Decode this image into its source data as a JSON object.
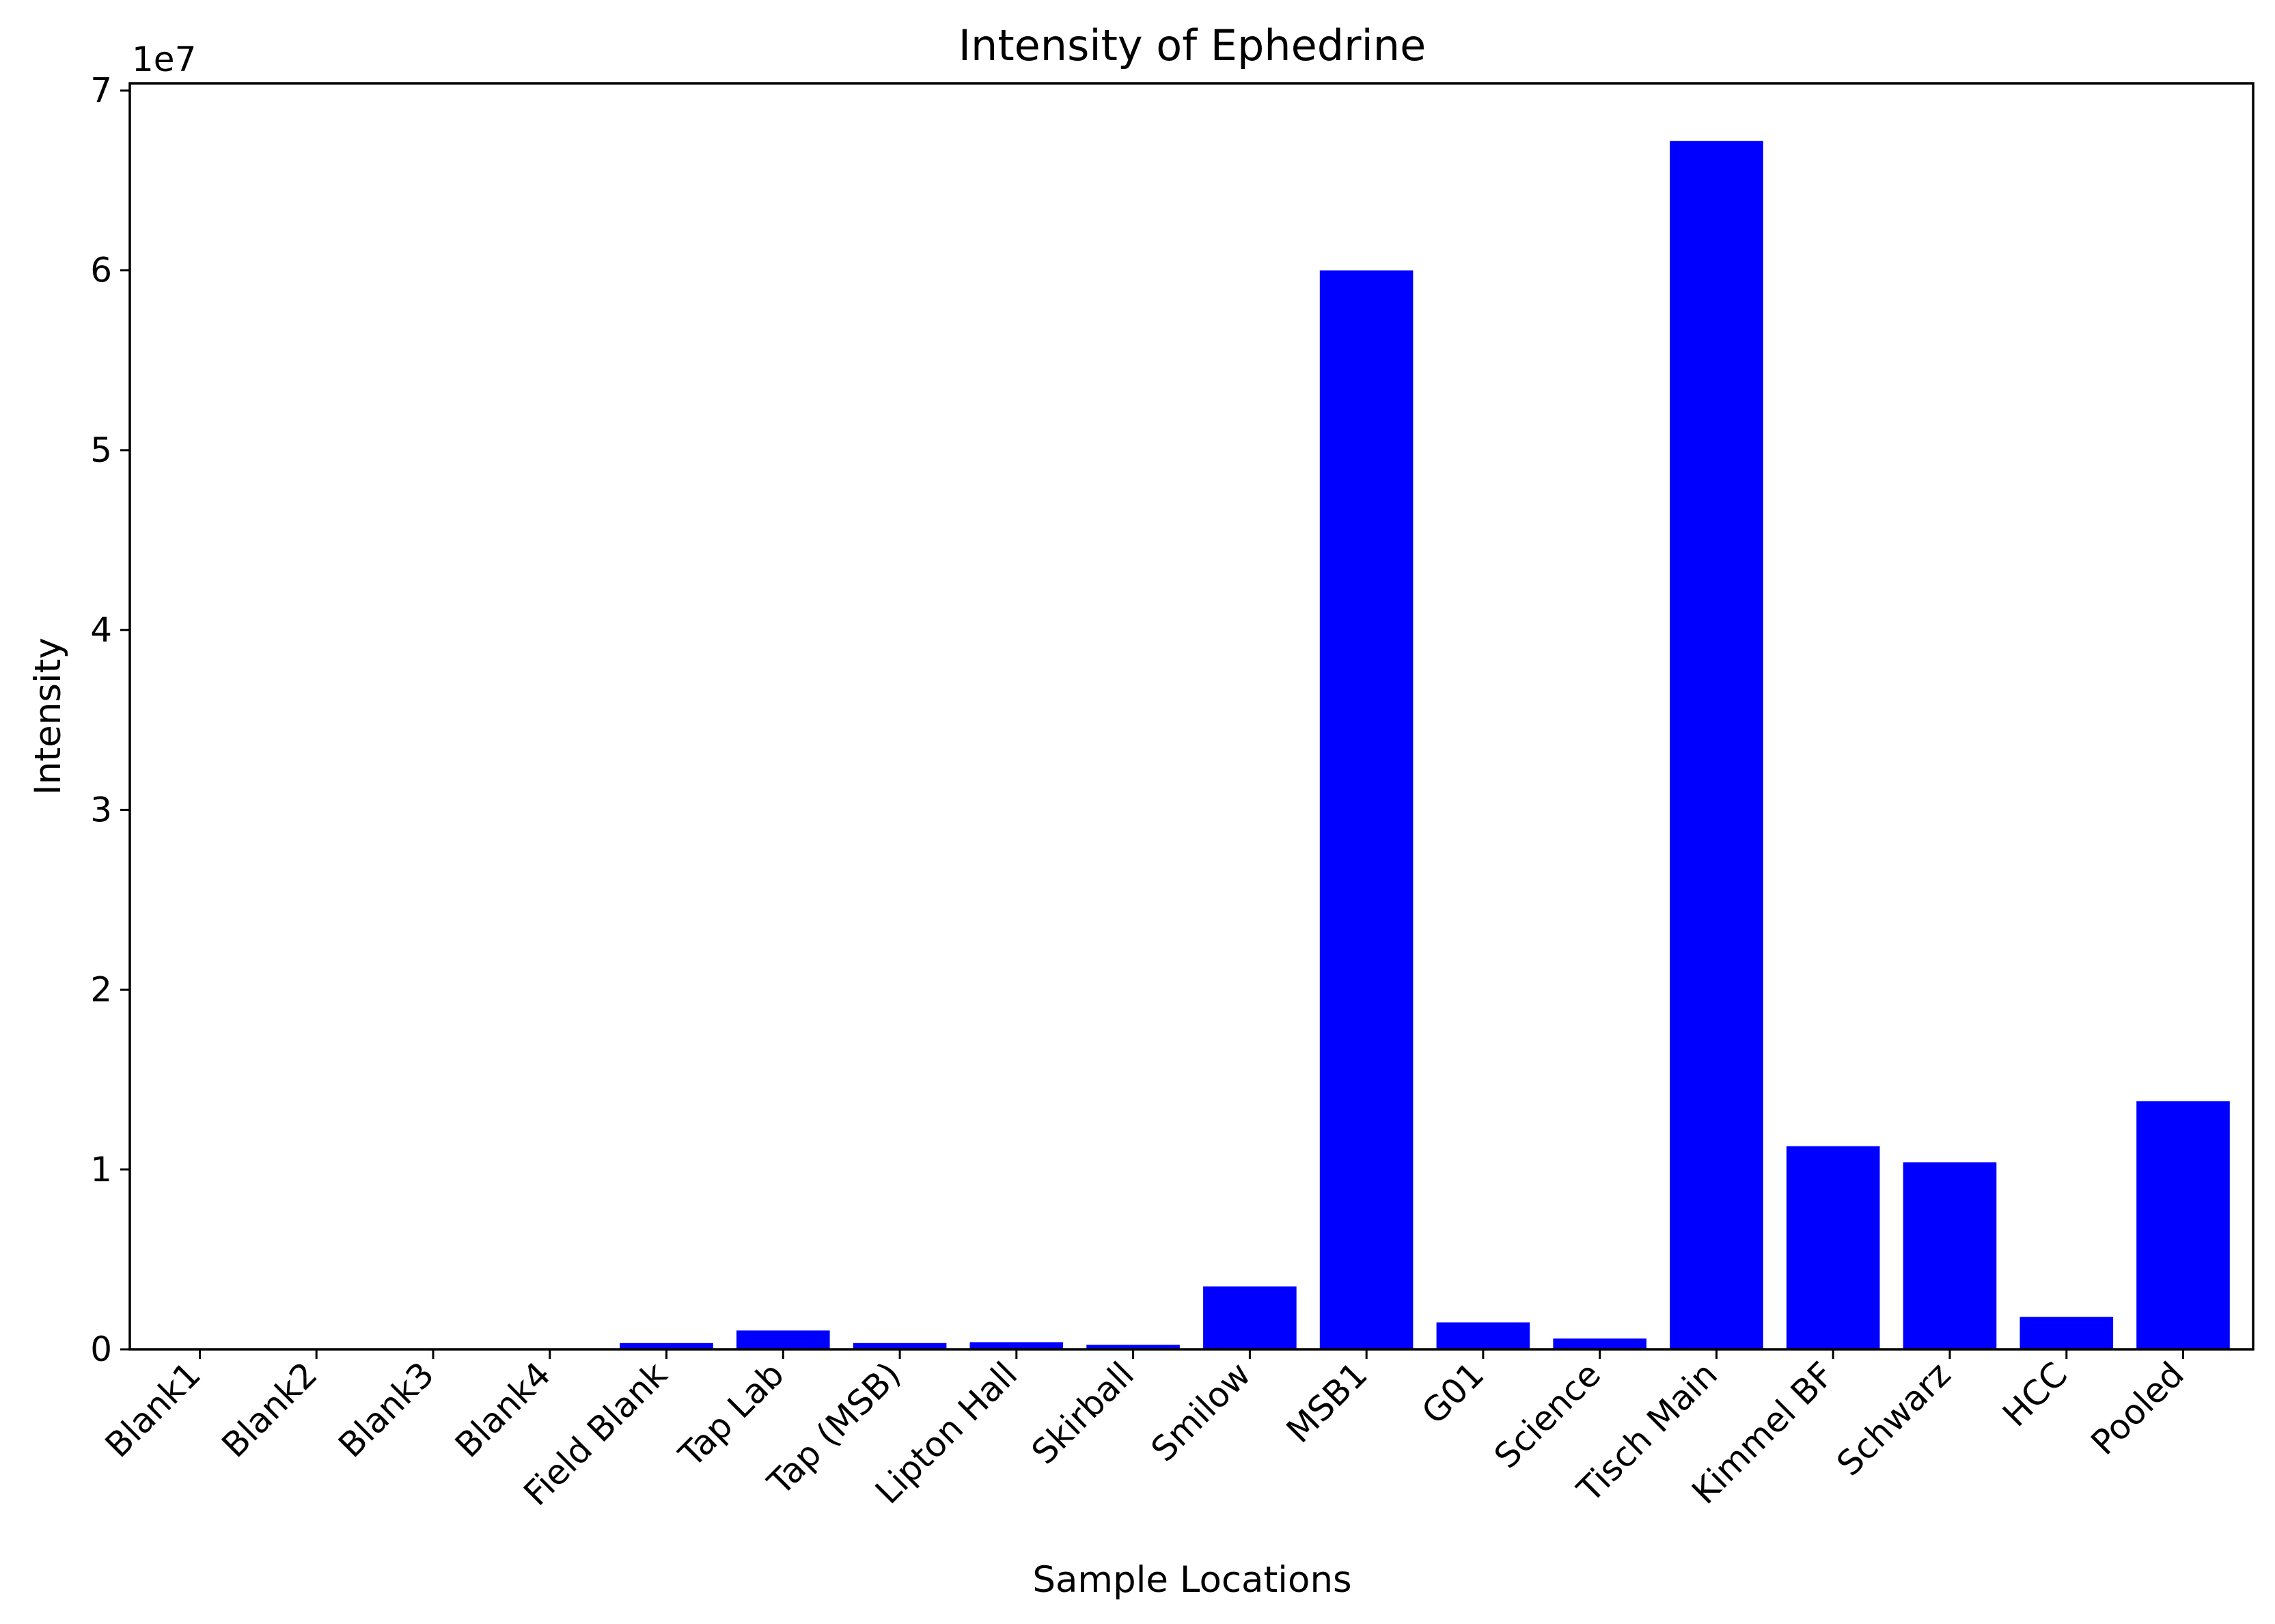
{
  "chart_data": {
    "type": "bar",
    "title": "Intensity of Ephedrine",
    "xlabel": "Sample Locations",
    "ylabel": "Intensity",
    "y_offset_label": "1e7",
    "y_scale": 10000000,
    "ylim": [
      0,
      70400000
    ],
    "yticks": [
      0,
      10000000,
      20000000,
      30000000,
      40000000,
      50000000,
      60000000,
      70000000
    ],
    "ytick_labels": [
      "0",
      "1",
      "2",
      "3",
      "4",
      "5",
      "6",
      "7"
    ],
    "categories": [
      "Blank1",
      "Blank2",
      "Blank3",
      "Blank4",
      "Field Blank",
      "Tap Lab",
      "Tap (MSB)",
      "Lipton Hall",
      "Skirball",
      "Smilow",
      "MSB1",
      "G01",
      "Science",
      "Tisch Main",
      "Kimmel BF",
      "Schwarz",
      "HCC",
      "Pooled"
    ],
    "values": [
      0,
      0,
      0,
      0,
      350000,
      1050000,
      350000,
      400000,
      250000,
      3500000,
      60000000,
      1500000,
      600000,
      67200000,
      11300000,
      10400000,
      1800000,
      13800000
    ],
    "bar_color": "#0000ff",
    "grid": false,
    "legend": "none"
  }
}
